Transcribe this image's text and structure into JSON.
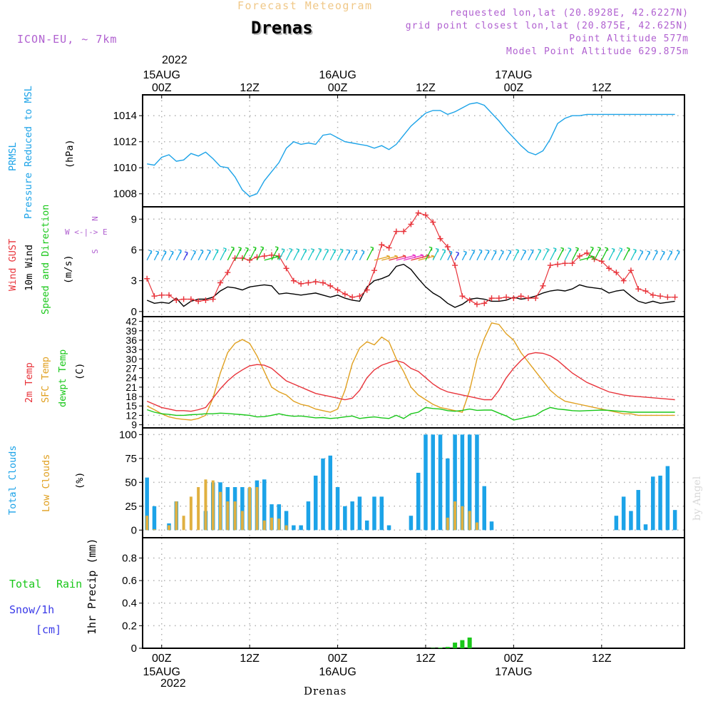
{
  "header": {
    "meteogram_title": "Forecast Meteogram",
    "station": "Drenas",
    "model": "ICON-EU, ~ 7km",
    "requested": "requested lon,lat (20.8928E, 42.6227N)",
    "grid_point": "grid point closest lon,lat (20.875E, 42.625N)",
    "point_altitude": "Point Altitude 577m",
    "model_altitude": "Model Point Altitude 629.875m",
    "watermark": "by Angel",
    "footer_station": "Drenas"
  },
  "colors": {
    "prmsl": "#1ca3e8",
    "gust": "#e8333a",
    "wind10m": "#000000",
    "t2m": "#e8333a",
    "sfc": "#e0a020",
    "dewpt": "#19c719",
    "total_clouds": "#1ca3e8",
    "low_clouds": "#e0b040",
    "rain": "#19c719",
    "snow": "#3a3ae8",
    "wind_dir": "#19c719",
    "purple": "#b060d0",
    "title_faded": "#f0c888"
  },
  "time_axis": {
    "top_year": "2022",
    "bottom_year": "2022",
    "ticks": [
      {
        "t": 0,
        "label": "00Z",
        "date": "15AUG"
      },
      {
        "t": 12,
        "label": "12Z",
        "date": ""
      },
      {
        "t": 24,
        "label": "00Z",
        "date": "16AUG"
      },
      {
        "t": 36,
        "label": "12Z",
        "date": ""
      },
      {
        "t": 48,
        "label": "00Z",
        "date": "17AUG"
      },
      {
        "t": 60,
        "label": "12Z",
        "date": ""
      }
    ],
    "range_hours": [
      -2.6,
      71.3
    ]
  },
  "panels": {
    "pressure": {
      "labels": [
        "PRMSL",
        "Pressure Reduced to MSL",
        "(hPa)"
      ],
      "ylim": [
        1007,
        1015.6
      ],
      "yticks": [
        1008,
        1010,
        1012,
        1014
      ]
    },
    "wind": {
      "labels": [
        "Wind GUST",
        "10m Wind",
        "Speed and Direction",
        "(m/s)"
      ],
      "compass": [
        "N",
        "W <-|-> E",
        "S"
      ],
      "ylim": [
        -0.5,
        10.2
      ],
      "yticks": [
        0,
        3,
        6,
        9
      ]
    },
    "temp": {
      "labels": [
        "2m Temp",
        "SFC Temp",
        "dewpt Temp",
        "(C)"
      ],
      "ylim": [
        8,
        43.5
      ],
      "yticks": [
        9,
        12,
        15,
        18,
        21,
        24,
        27,
        30,
        33,
        36,
        39,
        42
      ]
    },
    "clouds": {
      "labels": [
        "Total Clouds",
        "Low Clouds",
        "(%)"
      ],
      "ylim": [
        -8,
        107
      ],
      "yticks": [
        0,
        25,
        50,
        75,
        100
      ]
    },
    "precip": {
      "labels": [
        "Total",
        "Rain",
        "Snow/1h",
        "[cm]",
        "1hr Precip (mm)"
      ],
      "ylim": [
        0,
        0.98
      ],
      "yticks": [
        0,
        0.2,
        0.4,
        0.6,
        0.8
      ]
    }
  },
  "chart_data": {
    "type": "line",
    "x_hours": [
      -2,
      -1,
      0,
      1,
      2,
      3,
      4,
      5,
      6,
      7,
      8,
      9,
      10,
      11,
      12,
      13,
      14,
      15,
      16,
      17,
      18,
      19,
      20,
      21,
      22,
      23,
      24,
      25,
      26,
      27,
      28,
      29,
      30,
      31,
      32,
      33,
      34,
      35,
      36,
      37,
      38,
      39,
      40,
      41,
      42,
      43,
      44,
      45,
      46,
      47,
      48,
      49,
      50,
      51,
      52,
      53,
      54,
      55,
      56,
      57,
      58,
      59,
      60,
      61,
      62,
      63,
      64,
      65,
      66,
      67,
      68,
      69,
      70
    ],
    "series": [
      {
        "name": "PRMSL",
        "unit": "hPa",
        "values": [
          1010.3,
          1010.2,
          1010.8,
          1011.0,
          1010.5,
          1010.6,
          1011.1,
          1010.9,
          1011.2,
          1010.7,
          1010.1,
          1010.0,
          1009.3,
          1008.3,
          1007.8,
          1008.0,
          1009.0,
          1009.7,
          1010.4,
          1011.5,
          1012.0,
          1011.8,
          1011.9,
          1011.8,
          1012.5,
          1012.6,
          1012.3,
          1012.0,
          1011.9,
          1011.8,
          1011.7,
          1011.5,
          1011.7,
          1011.4,
          1011.8,
          1012.5,
          1013.2,
          1013.7,
          1014.2,
          1014.4,
          1014.4,
          1014.1,
          1014.3,
          1014.6,
          1014.9,
          1015.0,
          1014.8,
          1014.2,
          1013.6,
          1012.9,
          1012.3,
          1011.7,
          1011.2,
          1011.0,
          1011.3,
          1012.2,
          1013.4,
          1013.8,
          1014.0,
          1014.0,
          1014.1,
          1014.1,
          1014.1,
          1014.1,
          1014.1,
          1014.1,
          1014.1,
          1014.1,
          1014.1,
          1014.1,
          1014.1,
          1014.1,
          1014.1
        ]
      },
      {
        "name": "Wind GUST",
        "unit": "m/s",
        "values": [
          3.2,
          1.5,
          1.6,
          1.6,
          1.1,
          1.2,
          1.2,
          1.0,
          1.1,
          1.2,
          2.8,
          3.8,
          5.2,
          5.2,
          5.0,
          5.3,
          5.4,
          5.5,
          5.4,
          4.2,
          3.0,
          2.7,
          2.8,
          2.9,
          2.8,
          2.5,
          2.1,
          1.7,
          1.4,
          1.5,
          2.1,
          4.0,
          6.5,
          6.2,
          7.8,
          7.8,
          8.5,
          9.6,
          9.4,
          8.7,
          7.1,
          6.3,
          4.5,
          1.5,
          1.1,
          0.7,
          0.8,
          1.3,
          1.3,
          1.4,
          1.3,
          1.5,
          1.3,
          1.3,
          2.5,
          4.5,
          4.6,
          4.7,
          4.7,
          5.4,
          5.7,
          5.1,
          4.9,
          4.2,
          3.8,
          3.0,
          4.0,
          2.2,
          2.0,
          1.6,
          1.5,
          1.4,
          1.4
        ]
      },
      {
        "name": "10m Wind",
        "unit": "m/s",
        "values": [
          1.1,
          0.8,
          0.9,
          0.8,
          1.3,
          0.5,
          1.0,
          1.2,
          1.2,
          1.4,
          2.0,
          2.4,
          2.3,
          2.1,
          2.4,
          2.5,
          2.6,
          2.5,
          1.7,
          1.8,
          1.7,
          1.6,
          1.7,
          1.8,
          1.6,
          1.4,
          1.6,
          1.3,
          1.1,
          1.0,
          2.4,
          3.0,
          3.2,
          3.5,
          4.4,
          4.6,
          4.1,
          3.2,
          2.4,
          1.8,
          1.4,
          0.8,
          0.4,
          0.7,
          1.2,
          1.3,
          1.2,
          1.0,
          1.0,
          1.1,
          1.4,
          1.2,
          1.3,
          1.5,
          1.8,
          2.0,
          2.1,
          2.0,
          2.2,
          2.6,
          2.4,
          2.3,
          2.2,
          1.8,
          2.0,
          2.1,
          1.5,
          1.0,
          0.8,
          1.0,
          0.8,
          0.9,
          1.0
        ]
      },
      {
        "name": "2m Temp",
        "unit": "C",
        "values": [
          16.5,
          15.5,
          14.5,
          14.0,
          13.5,
          13.5,
          13.3,
          13.8,
          14.5,
          17.5,
          20.5,
          23.0,
          25.0,
          26.5,
          27.8,
          28.2,
          28.0,
          27.0,
          25.0,
          23.0,
          22.0,
          21.0,
          20.0,
          19.0,
          18.5,
          18.0,
          17.5,
          17.0,
          17.5,
          20.0,
          24.0,
          26.5,
          28.0,
          28.8,
          29.5,
          28.8,
          27.0,
          26.0,
          24.0,
          22.0,
          20.5,
          19.5,
          19.0,
          18.5,
          18.0,
          17.5,
          17.0,
          17.0,
          20.0,
          24.0,
          27.0,
          29.5,
          31.5,
          32.0,
          31.8,
          31.0,
          29.5,
          27.5,
          25.5,
          24.0,
          22.5,
          21.5,
          20.5,
          19.5,
          19.0,
          18.5,
          18.2,
          18.0,
          17.8,
          17.6,
          17.4,
          17.2,
          17.0
        ]
      },
      {
        "name": "SFC Temp",
        "unit": "C",
        "values": [
          15.0,
          13.8,
          12.5,
          11.5,
          11.0,
          10.7,
          10.5,
          11.0,
          12.0,
          17.5,
          25.5,
          32.0,
          35.0,
          36.2,
          35.0,
          31.0,
          26.0,
          21.0,
          19.5,
          18.5,
          16.5,
          15.5,
          15.0,
          14.0,
          13.5,
          13.0,
          14.0,
          20.0,
          28.5,
          33.5,
          35.5,
          34.5,
          37.0,
          35.5,
          30.0,
          26.0,
          21.0,
          18.5,
          17.0,
          15.5,
          14.5,
          14.0,
          13.5,
          13.0,
          20.0,
          30.0,
          36.5,
          41.5,
          41.0,
          38.0,
          36.0,
          32.0,
          29.0,
          26.0,
          23.0,
          20.0,
          18.0,
          16.5,
          16.0,
          15.5,
          15.0,
          14.5,
          14.0,
          13.5,
          13.0,
          12.5,
          12.5,
          12.0,
          12.0,
          12.0,
          12.0,
          12.0,
          12.0
        ]
      },
      {
        "name": "dewpt Temp",
        "unit": "C",
        "values": [
          13.8,
          13.0,
          12.5,
          12.3,
          12.0,
          12.0,
          12.2,
          12.3,
          12.5,
          12.5,
          12.7,
          12.6,
          12.4,
          12.2,
          12.0,
          11.5,
          11.6,
          12.0,
          12.5,
          12.0,
          11.7,
          11.8,
          11.5,
          11.2,
          11.3,
          11.0,
          11.2,
          11.5,
          11.8,
          11.0,
          11.3,
          11.5,
          11.2,
          11.0,
          12.0,
          11.0,
          12.5,
          13.0,
          14.5,
          14.2,
          14.0,
          13.5,
          13.3,
          13.6,
          14.0,
          13.6,
          13.7,
          13.7,
          12.7,
          11.8,
          10.5,
          11.0,
          11.5,
          12.0,
          13.5,
          14.5,
          14.0,
          13.8,
          13.5,
          13.4,
          13.5,
          13.6,
          13.7,
          13.6,
          13.4,
          13.2,
          13.0,
          13.0,
          13.0,
          13.0,
          13.0,
          13.0,
          13.0
        ]
      },
      {
        "name": "Total Clouds",
        "unit": "%",
        "values": [
          55,
          25,
          0,
          7,
          30,
          0,
          0,
          0,
          20,
          50,
          50,
          45,
          45,
          45,
          44,
          52,
          53,
          27,
          27,
          20,
          5,
          5,
          30,
          57,
          75,
          78,
          45,
          25,
          30,
          35,
          10,
          35,
          35,
          5,
          0,
          0,
          15,
          60,
          100,
          100,
          100,
          75,
          100,
          100,
          100,
          100,
          46,
          9,
          0,
          0,
          0,
          0,
          0,
          0,
          0,
          0,
          0,
          0,
          0,
          0,
          0,
          0,
          0,
          0,
          15,
          35,
          20,
          42,
          6,
          56,
          57,
          67,
          21
        ]
      },
      {
        "name": "Low Clouds",
        "unit": "%",
        "values": [
          15,
          1,
          0,
          5,
          30,
          15,
          35,
          45,
          53,
          52,
          40,
          30,
          30,
          20,
          45,
          45,
          10,
          13,
          12,
          5,
          0,
          0,
          0,
          0,
          0,
          0,
          0,
          0,
          0,
          0,
          0,
          0,
          0,
          0,
          0,
          0,
          0,
          0,
          0,
          0,
          0,
          13,
          30,
          25,
          20,
          8,
          0,
          0,
          0,
          0,
          0,
          0,
          0,
          0,
          0,
          0,
          0,
          0,
          0,
          0,
          0,
          0,
          0,
          0,
          0,
          0,
          0,
          0,
          0,
          0,
          0,
          0,
          0
        ]
      },
      {
        "name": "1hr Precip",
        "unit": "mm",
        "values": [
          0,
          0,
          0,
          0,
          0,
          0,
          0,
          0,
          0,
          0,
          0,
          0,
          0,
          0,
          0,
          0,
          0,
          0,
          0,
          0,
          0,
          0,
          0,
          0,
          0,
          0,
          0,
          0,
          0,
          0,
          0,
          0,
          0,
          0,
          0,
          0,
          0,
          0,
          0,
          0.003,
          0.006,
          0.012,
          0.05,
          0.072,
          0.095,
          0,
          0,
          0,
          0,
          0,
          0,
          0,
          0,
          0,
          0,
          0,
          0,
          0,
          0,
          0,
          0,
          0,
          0,
          0,
          0,
          0,
          0,
          0,
          0,
          0,
          0,
          0,
          0
        ]
      }
    ]
  }
}
